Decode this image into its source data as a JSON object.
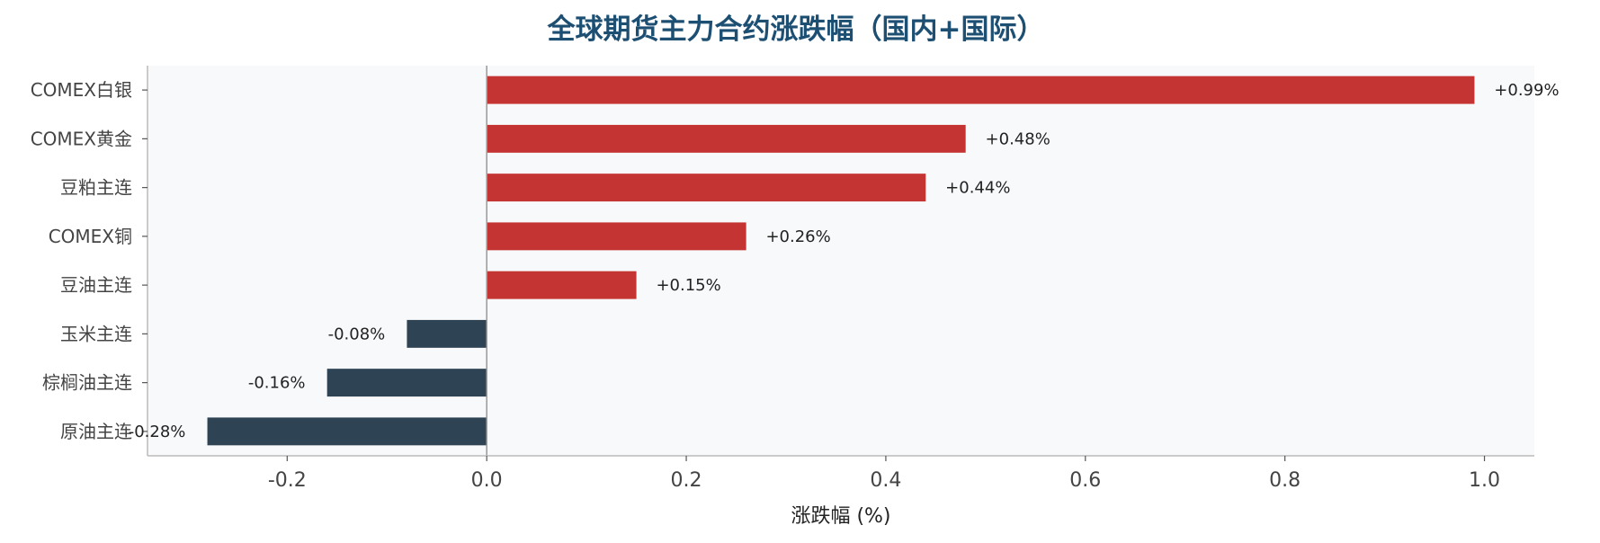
{
  "chart_data": {
    "type": "bar",
    "orientation": "horizontal",
    "title": "全球期货主力合约涨跌幅（国内+国际）",
    "xlabel": "涨跌幅 (%)",
    "ylabel": "",
    "xlim": [
      -0.34,
      1.05
    ],
    "xticks": [
      -0.2,
      0.0,
      0.2,
      0.4,
      0.6,
      0.8,
      1.0
    ],
    "xtick_labels": [
      "-0.2",
      "0.0",
      "0.2",
      "0.4",
      "0.6",
      "0.8",
      "1.0"
    ],
    "categories": [
      "COMEX白银",
      "COMEX黄金",
      "豆粕主连",
      "COMEX铜",
      "豆油主连",
      "玉米主连",
      "棕榈油主连",
      "原油主连"
    ],
    "values": [
      0.99,
      0.48,
      0.44,
      0.26,
      0.15,
      -0.08,
      -0.16,
      -0.28
    ],
    "value_labels": [
      "+0.99%",
      "+0.48%",
      "+0.44%",
      "+0.26%",
      "+0.15%",
      "-0.08%",
      "-0.16%",
      "-0.28%"
    ],
    "colors": {
      "positive": "#c43432",
      "negative": "#2e4353",
      "title": "#1d4f73",
      "plot_bg": "#f8f9fb",
      "zero_line": "#999999",
      "axis": "#bbbbbb"
    },
    "grid": false,
    "legend": "none"
  }
}
